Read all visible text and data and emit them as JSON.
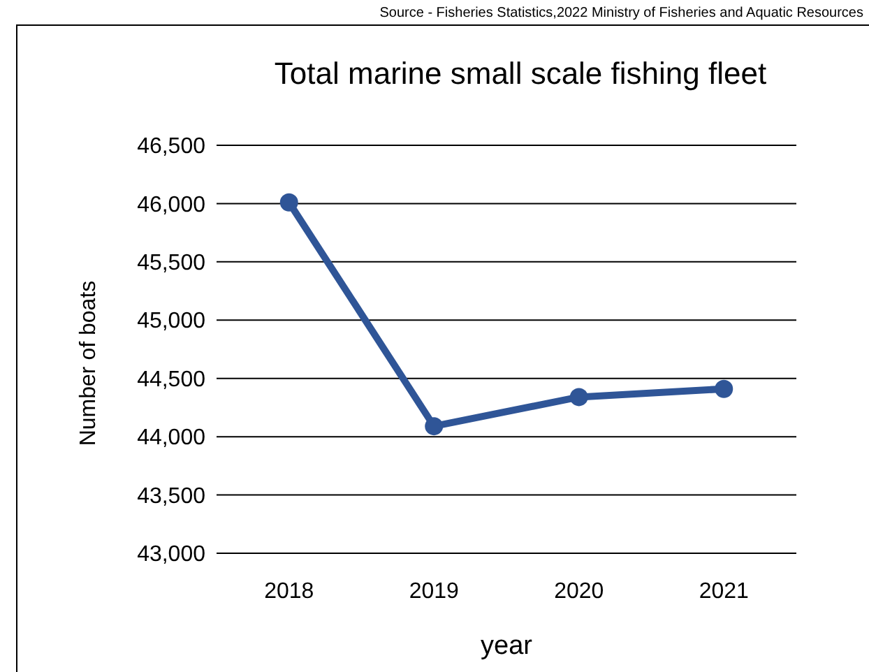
{
  "chart_data": {
    "type": "line",
    "title": "Total marine small scale fishing fleet",
    "xlabel": "year",
    "ylabel": "Number of boats",
    "annotations": [
      "Source - Fisheries Statistics,2022 Ministry of Fisheries and Aquatic Resources"
    ],
    "categories": [
      "2018",
      "2019",
      "2020",
      "2021"
    ],
    "series": [
      {
        "color": "#2f5597",
        "values": [
          46010,
          44090,
          44340,
          44410
        ]
      }
    ],
    "ylim": [
      43000,
      46500
    ],
    "yticks": [
      {
        "value": 43000,
        "label": "43,000"
      },
      {
        "value": 43500,
        "label": "43,500"
      },
      {
        "value": 44000,
        "label": "44,000"
      },
      {
        "value": 44500,
        "label": "44,500"
      },
      {
        "value": 45000,
        "label": "45,000"
      },
      {
        "value": 45500,
        "label": "45,500"
      },
      {
        "value": 46000,
        "label": "46,000"
      },
      {
        "value": 46500,
        "label": "46,500"
      }
    ],
    "grid": "y",
    "marker": "circle",
    "line_style": "solid"
  }
}
